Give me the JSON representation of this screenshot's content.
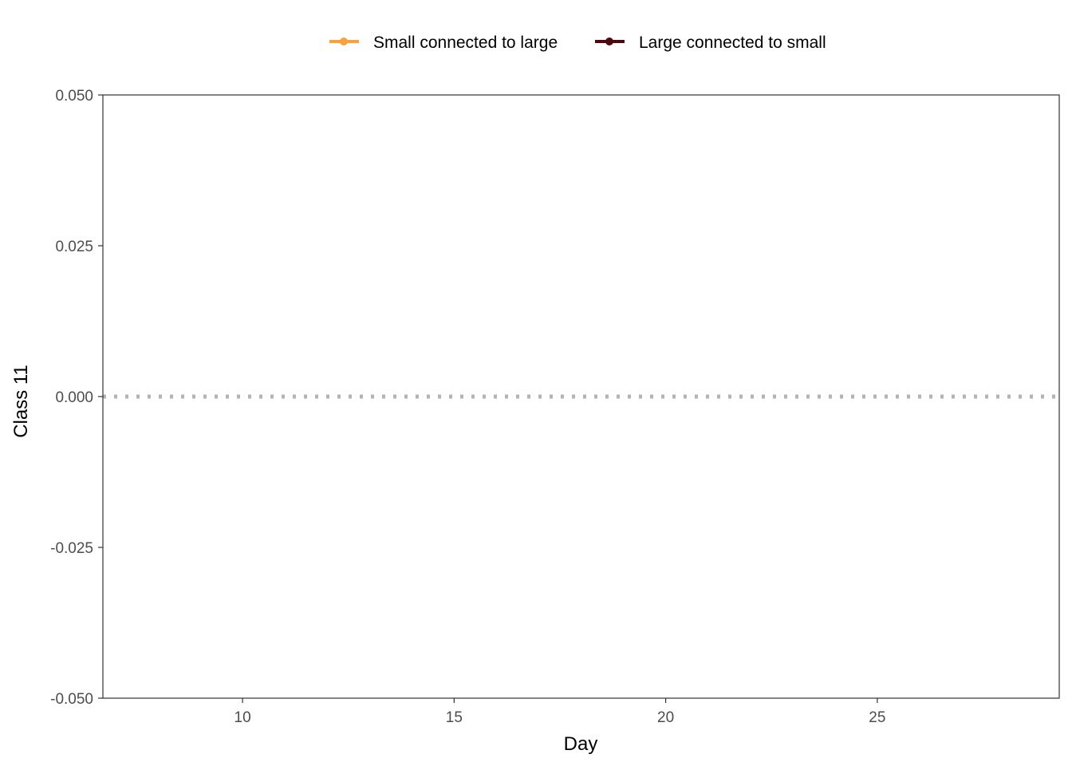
{
  "chart_data": {
    "type": "line",
    "title": "",
    "xlabel": "Day",
    "ylabel": "Class 11",
    "xlim": [
      6.7,
      29.3
    ],
    "ylim": [
      -0.05,
      0.05
    ],
    "x_ticks": [
      10,
      15,
      20,
      25
    ],
    "x_tick_labels": [
      "10",
      "15",
      "20",
      "25"
    ],
    "y_ticks": [
      0.05,
      0.025,
      0.0,
      -0.025,
      -0.05
    ],
    "y_tick_labels": [
      "0.050",
      "0.025",
      "0.000",
      "-0.025",
      "-0.050"
    ],
    "reference_line": {
      "y": 0.0,
      "style": "dotted",
      "color": "#b3b3b3"
    },
    "legend_position": "top",
    "grid": false,
    "series": [
      {
        "name": "Small connected to large",
        "color": "#f7a23b",
        "x": [],
        "y": []
      },
      {
        "name": "Large connected to small",
        "color": "#4a0a10",
        "x": [],
        "y": []
      }
    ]
  }
}
